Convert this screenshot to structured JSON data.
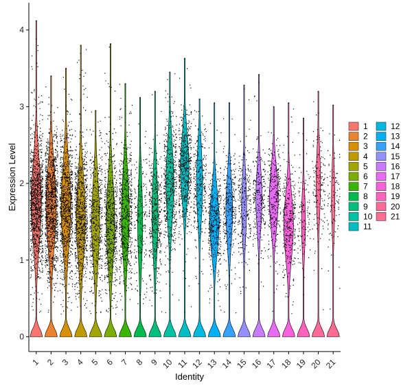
{
  "chart_data": {
    "type": "violin",
    "title": "",
    "xlabel": "Identity",
    "ylabel": "Expression Level",
    "ylim": [
      -0.2,
      4.2
    ],
    "y_ticks": [
      0,
      1,
      2,
      3,
      4
    ],
    "grid": false,
    "legend_position": "right",
    "jitter_points": true,
    "categories": [
      "1",
      "2",
      "3",
      "4",
      "5",
      "6",
      "7",
      "8",
      "9",
      "10",
      "11",
      "12",
      "13",
      "14",
      "15",
      "16",
      "17",
      "18",
      "19",
      "20",
      "21"
    ],
    "colors": [
      "#F8766D",
      "#EA8331",
      "#D89000",
      "#C09B00",
      "#A3A500",
      "#7CAE00",
      "#39B600",
      "#00BB4E",
      "#00BF7D",
      "#00C1A3",
      "#00BFC4",
      "#00BAE0",
      "#00B0F6",
      "#35A2FF",
      "#9590FF",
      "#C77CFF",
      "#E76BF3",
      "#FA62DB",
      "#FF62BC",
      "#FF6A98",
      "#FF6C91"
    ],
    "series": [
      {
        "name": "1",
        "max": 4.12,
        "mode": 1.75,
        "spread": 0.75,
        "points": 1100,
        "density": 0.9
      },
      {
        "name": "2",
        "max": 3.4,
        "mode": 1.7,
        "spread": 0.75,
        "points": 1100,
        "density": 0.9
      },
      {
        "name": "3",
        "max": 3.5,
        "mode": 1.7,
        "spread": 0.75,
        "points": 900,
        "density": 0.85
      },
      {
        "name": "4",
        "max": 3.8,
        "mode": 1.55,
        "spread": 0.75,
        "points": 800,
        "density": 0.8
      },
      {
        "name": "5",
        "max": 2.95,
        "mode": 1.5,
        "spread": 0.75,
        "points": 500,
        "density": 0.7
      },
      {
        "name": "6",
        "max": 3.82,
        "mode": 1.5,
        "spread": 0.75,
        "points": 650,
        "density": 0.75
      },
      {
        "name": "7",
        "max": 3.3,
        "mode": 1.6,
        "spread": 0.75,
        "points": 600,
        "density": 0.7
      },
      {
        "name": "8",
        "max": 3.12,
        "mode": 1.5,
        "spread": 0.75,
        "points": 200,
        "density": 0.45
      },
      {
        "name": "9",
        "max": 3.2,
        "mode": 1.6,
        "spread": 0.75,
        "points": 400,
        "density": 0.55
      },
      {
        "name": "10",
        "max": 3.45,
        "mode": 2.0,
        "spread": 0.7,
        "points": 500,
        "density": 0.7
      },
      {
        "name": "11",
        "max": 3.63,
        "mode": 2.2,
        "spread": 0.6,
        "points": 550,
        "density": 0.75
      },
      {
        "name": "12",
        "max": 3.1,
        "mode": 2.0,
        "spread": 0.65,
        "points": 300,
        "density": 0.55
      },
      {
        "name": "13",
        "max": 3.05,
        "mode": 1.5,
        "spread": 0.55,
        "points": 400,
        "density": 0.85
      },
      {
        "name": "14",
        "max": 3.05,
        "mode": 1.65,
        "spread": 0.6,
        "points": 300,
        "density": 0.6
      },
      {
        "name": "15",
        "max": 3.28,
        "mode": 1.7,
        "spread": 0.6,
        "points": 250,
        "density": 0.45
      },
      {
        "name": "16",
        "max": 3.42,
        "mode": 1.8,
        "spread": 0.55,
        "points": 250,
        "density": 0.55
      },
      {
        "name": "17",
        "max": 3.0,
        "mode": 1.8,
        "spread": 0.55,
        "points": 300,
        "density": 0.8
      },
      {
        "name": "18",
        "max": 3.05,
        "mode": 1.45,
        "spread": 0.6,
        "points": 320,
        "density": 0.85
      },
      {
        "name": "19",
        "max": 2.85,
        "mode": 1.5,
        "spread": 0.55,
        "points": 120,
        "density": 0.35
      },
      {
        "name": "20",
        "max": 3.2,
        "mode": 2.0,
        "spread": 0.6,
        "points": 150,
        "density": 0.4
      },
      {
        "name": "21",
        "max": 3.02,
        "mode": 1.8,
        "spread": 0.6,
        "points": 100,
        "density": 0.3
      }
    ]
  }
}
